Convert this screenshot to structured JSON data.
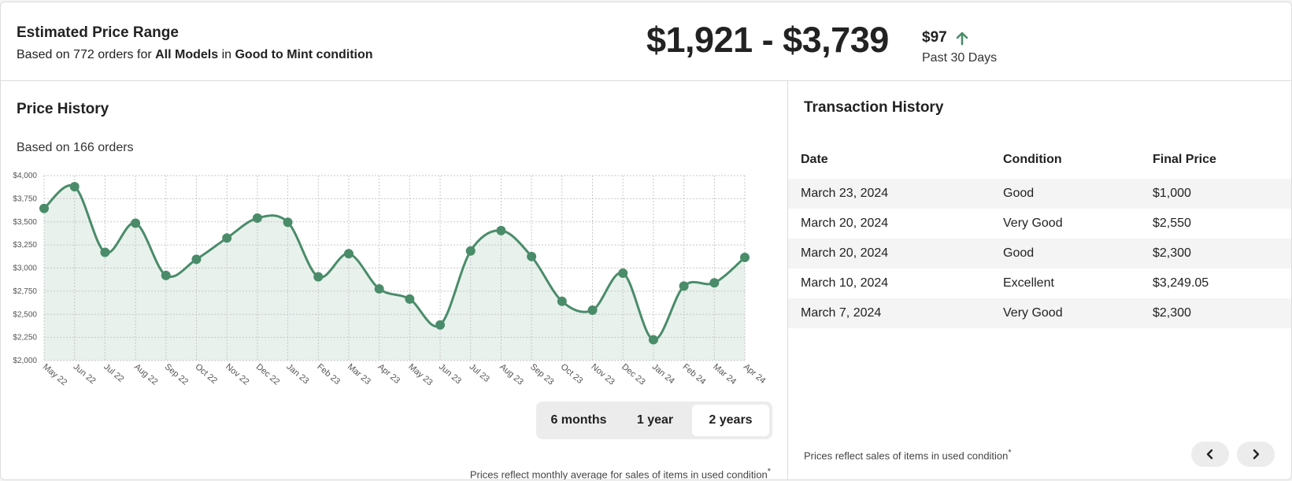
{
  "summary": {
    "title": "Estimated Price Range",
    "subtitle_prefix": "Based on 772 orders for ",
    "model": "All Models",
    "subtitle_mid": " in ",
    "condition": "Good to Mint condition",
    "range": "$1,921 - $3,739",
    "change": "$97",
    "change_direction": "up",
    "change_color": "#4a8c6a",
    "period": "Past 30 Days"
  },
  "price_history": {
    "title": "Price History",
    "orders": "Based on 166 orders",
    "note": "Prices reflect monthly average for sales of items in used condition",
    "note_mark": "*",
    "ranges": [
      {
        "label": "6 months",
        "active": false
      },
      {
        "label": "1 year",
        "active": false
      },
      {
        "label": "2 years",
        "active": true
      }
    ]
  },
  "chart_data": {
    "type": "area",
    "title": "",
    "xlabel": "",
    "ylabel": "",
    "categories": [
      "May 22",
      "Jun 22",
      "Jul 22",
      "Aug 22",
      "Sep 22",
      "Oct 22",
      "Nov 22",
      "Dec 22",
      "Jan 23",
      "Feb 23",
      "Mar 23",
      "Apr 23",
      "May 23",
      "Jun 23",
      "Jul 23",
      "Aug 23",
      "Sep 23",
      "Oct 23",
      "Nov 23",
      "Dec 23",
      "Jan 24",
      "Feb 24",
      "Mar 24",
      "Apr 24"
    ],
    "values": [
      3645,
      3880,
      3170,
      3485,
      2920,
      3095,
      3325,
      3540,
      3495,
      2905,
      3155,
      2775,
      2665,
      2385,
      3185,
      3405,
      3125,
      2640,
      2545,
      2945,
      2225,
      2805,
      2840,
      3115
    ],
    "ylim": [
      2000,
      4000
    ],
    "yticks": [
      "$2,000",
      "$2,250",
      "$2,500",
      "$2,750",
      "$3,000",
      "$3,250",
      "$3,500",
      "$3,750",
      "$4,000"
    ],
    "grid": true,
    "color": "#4a8c6a",
    "fill": "#e8f1ec"
  },
  "transactions": {
    "title": "Transaction History",
    "columns": [
      "Date",
      "Condition",
      "Final Price"
    ],
    "rows": [
      [
        "March 23, 2024",
        "Good",
        "$1,000"
      ],
      [
        "March 20, 2024",
        "Very Good",
        "$2,550"
      ],
      [
        "March 20, 2024",
        "Good",
        "$2,300"
      ],
      [
        "March 10, 2024",
        "Excellent",
        "$3,249.05"
      ],
      [
        "March 7, 2024",
        "Very Good",
        "$2,300"
      ]
    ],
    "note": "Prices reflect sales of items in used condition",
    "note_mark": "*",
    "prev_icon": "chevron-left-icon",
    "next_icon": "chevron-right-icon"
  }
}
